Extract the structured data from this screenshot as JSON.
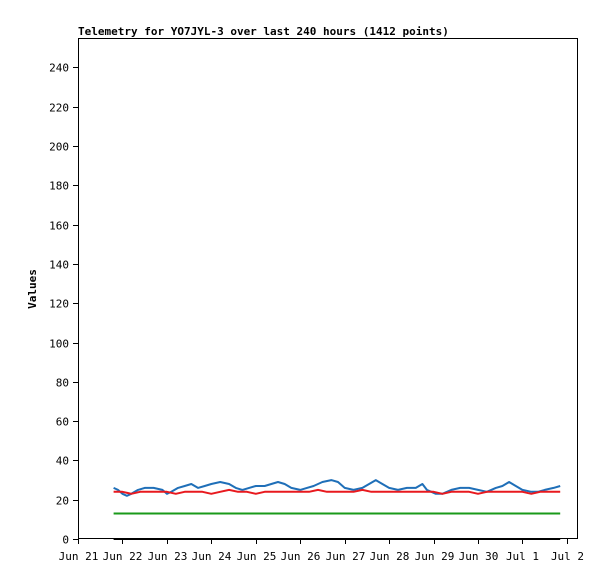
{
  "chart_data": {
    "type": "line",
    "title": "Telemetry for YO7JYL-3 over last 240 hours (1412 points)",
    "xlabel": "",
    "ylabel": "Values",
    "ylim": [
      0,
      255
    ],
    "yticks": [
      0,
      20,
      40,
      60,
      80,
      100,
      120,
      140,
      160,
      180,
      200,
      220,
      240
    ],
    "xlim": [
      0,
      11.25
    ],
    "xticks": [
      {
        "x": 0,
        "label": "Jun 21"
      },
      {
        "x": 1,
        "label": "Jun 22"
      },
      {
        "x": 2,
        "label": "Jun 23"
      },
      {
        "x": 3,
        "label": "Jun 24"
      },
      {
        "x": 4,
        "label": "Jun 25"
      },
      {
        "x": 5,
        "label": "Jun 26"
      },
      {
        "x": 6,
        "label": "Jun 27"
      },
      {
        "x": 7,
        "label": "Jun 28"
      },
      {
        "x": 8,
        "label": "Jun 29"
      },
      {
        "x": 9,
        "label": "Jun 30"
      },
      {
        "x": 10,
        "label": "Jul 1"
      },
      {
        "x": 11,
        "label": "Jul 2"
      }
    ],
    "grid": false,
    "legend": "none",
    "series": [
      {
        "color": "#1f6fb8",
        "x": [
          0.8,
          0.9,
          1.0,
          1.1,
          1.2,
          1.35,
          1.5,
          1.7,
          1.9,
          2.0,
          2.1,
          2.25,
          2.4,
          2.55,
          2.7,
          2.85,
          3.0,
          3.2,
          3.4,
          3.55,
          3.7,
          3.85,
          4.0,
          4.2,
          4.35,
          4.5,
          4.65,
          4.8,
          5.0,
          5.15,
          5.3,
          5.5,
          5.7,
          5.85,
          6.0,
          6.2,
          6.4,
          6.55,
          6.7,
          6.85,
          7.0,
          7.2,
          7.4,
          7.6,
          7.75,
          7.85,
          7.95,
          8.05,
          8.2,
          8.4,
          8.6,
          8.8,
          9.0,
          9.2,
          9.4,
          9.55,
          9.7,
          9.85,
          10.0,
          10.2,
          10.35,
          10.5,
          10.7,
          10.85
        ],
        "y": [
          26,
          25,
          23,
          22,
          23,
          25,
          26,
          26,
          25,
          23,
          24,
          26,
          27,
          28,
          26,
          27,
          28,
          29,
          28,
          26,
          25,
          26,
          27,
          27,
          28,
          29,
          28,
          26,
          25,
          26,
          27,
          29,
          30,
          29,
          26,
          25,
          26,
          28,
          30,
          28,
          26,
          25,
          26,
          26,
          28,
          25,
          24,
          23,
          23,
          25,
          26,
          26,
          25,
          24,
          26,
          27,
          29,
          27,
          25,
          24,
          24,
          25,
          26,
          27
        ]
      },
      {
        "color": "#e8191e",
        "x": [
          0.8,
          1.0,
          1.2,
          1.4,
          1.6,
          1.8,
          2.0,
          2.2,
          2.4,
          2.6,
          2.8,
          3.0,
          3.2,
          3.4,
          3.6,
          3.8,
          4.0,
          4.2,
          4.4,
          4.6,
          4.8,
          5.0,
          5.2,
          5.4,
          5.6,
          5.8,
          6.0,
          6.2,
          6.4,
          6.6,
          6.8,
          7.0,
          7.2,
          7.4,
          7.6,
          7.8,
          8.0,
          8.2,
          8.4,
          8.6,
          8.8,
          9.0,
          9.2,
          9.4,
          9.6,
          9.8,
          10.0,
          10.2,
          10.4,
          10.6,
          10.85
        ],
        "y": [
          24,
          24,
          23,
          24,
          24,
          24,
          24,
          23,
          24,
          24,
          24,
          23,
          24,
          25,
          24,
          24,
          23,
          24,
          24,
          24,
          24,
          24,
          24,
          25,
          24,
          24,
          24,
          24,
          25,
          24,
          24,
          24,
          24,
          24,
          24,
          24,
          24,
          23,
          24,
          24,
          24,
          23,
          24,
          24,
          24,
          24,
          24,
          23,
          24,
          24,
          24
        ]
      },
      {
        "color": "#1a9a1a",
        "x": [
          0.8,
          10.85
        ],
        "y": [
          13,
          13
        ]
      },
      {
        "color": "#000000",
        "x": [
          0.8,
          10.85
        ],
        "y": [
          0,
          0
        ]
      }
    ]
  }
}
